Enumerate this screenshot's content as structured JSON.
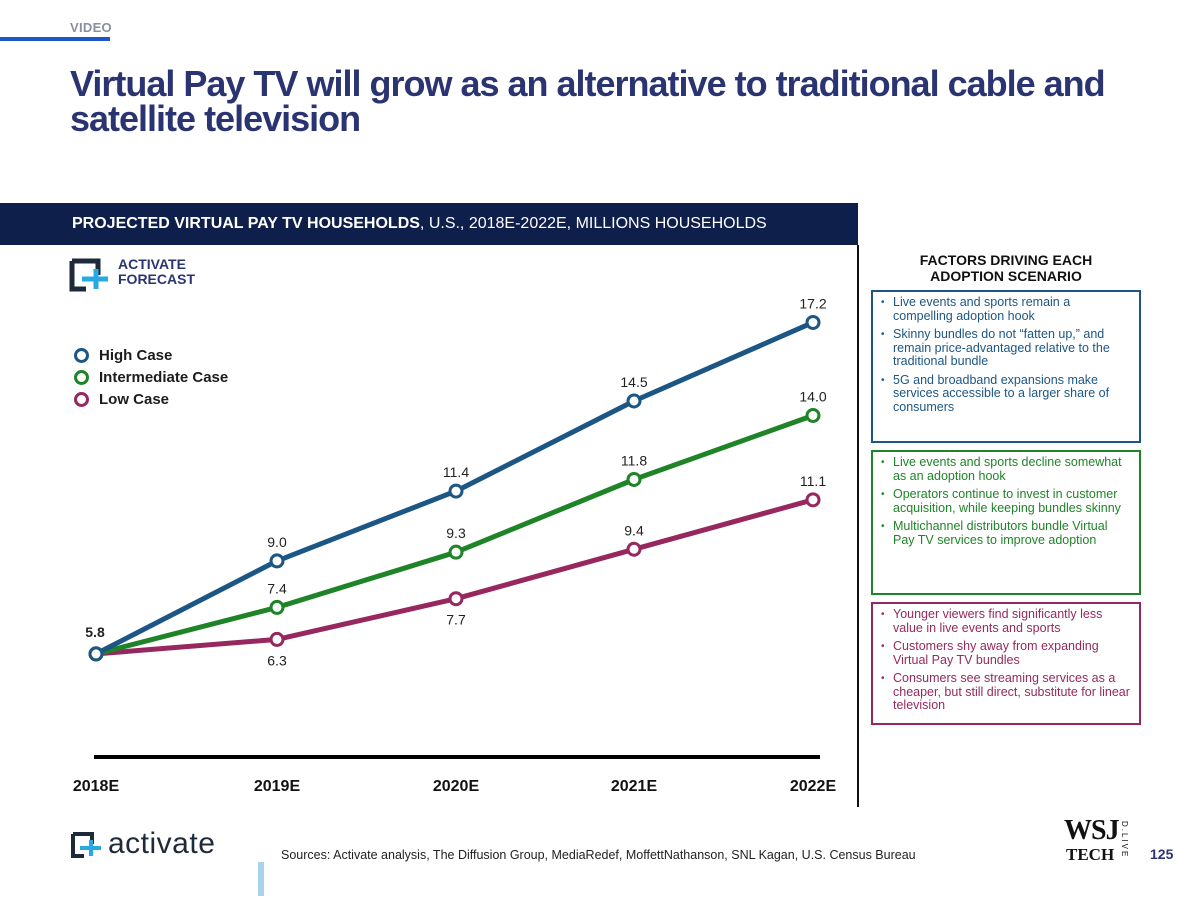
{
  "section": "VIDEO",
  "title": "Virtual Pay TV will grow as an alternative to traditional cable and satellite television",
  "chart_header": {
    "bold": "PROJECTED VIRTUAL PAY TV HOUSEHOLDS",
    "rest": ", U.S., 2018E-2022E, MILLIONS HOUSEHOLDS"
  },
  "badge": {
    "line1": "ACTIVATE",
    "line2": "FORECAST"
  },
  "colors": {
    "high": "#1c5684",
    "mid": "#1f8428",
    "low": "#96285f",
    "navy": "#0f1f4b",
    "title": "#2b3472"
  },
  "chart_data": {
    "type": "line",
    "title": "PROJECTED VIRTUAL PAY TV HOUSEHOLDS, U.S., 2018E-2022E, MILLIONS HOUSEHOLDS",
    "categories": [
      "2018E",
      "2019E",
      "2020E",
      "2021E",
      "2022E"
    ],
    "series": [
      {
        "name": "High Case",
        "key": "high",
        "values": [
          5.8,
          9.0,
          11.4,
          14.5,
          17.2
        ],
        "labels": [
          "5.8",
          "9.0",
          "11.4",
          "14.5",
          "17.2"
        ]
      },
      {
        "name": "Intermediate Case",
        "key": "mid",
        "values": [
          5.8,
          7.4,
          9.3,
          11.8,
          14.0
        ],
        "labels": [
          "",
          "7.4",
          "9.3",
          "11.8",
          "14.0"
        ]
      },
      {
        "name": "Low Case",
        "key": "low",
        "values": [
          5.8,
          6.3,
          7.7,
          9.4,
          11.1
        ],
        "labels": [
          "",
          "6.3",
          "7.7",
          "9.4",
          "11.1"
        ]
      }
    ],
    "xlabel": "",
    "ylabel": "",
    "ylim": [
      3.7,
      17.8
    ],
    "legend": "top-left",
    "grid": false
  },
  "factors": {
    "title_line1": "FACTORS DRIVING EACH",
    "title_line2": "ADOPTION SCENARIO",
    "high": [
      "Live events and sports remain a compelling adoption hook",
      "Skinny bundles do not “fatten up,” and remain price-advantaged relative to the traditional bundle",
      "5G and broadband expansions make services accessible to a larger share of consumers"
    ],
    "mid": [
      "Live events and sports decline somewhat as an adoption hook",
      "Operators continue to invest in customer acquisition, while keeping bundles skinny",
      "Multichannel distributors bundle Virtual Pay TV services to improve adoption"
    ],
    "low": [
      "Younger viewers find significantly less value in live events and sports",
      "Customers shy away from expanding Virtual Pay TV bundles",
      "Consumers see streaming services as a cheaper, but still direct, substitute for linear television"
    ]
  },
  "footer": {
    "logo": "activate",
    "sources": "Sources: Activate analysis, The Diffusion Group, MediaRedef, MoffettNathanson, SNL Kagan, U.S. Census Bureau",
    "wsj_line1": "WSJ",
    "wsj_line2": "TECH",
    "wsj_live": "D.LIVE",
    "page_number": "125"
  }
}
